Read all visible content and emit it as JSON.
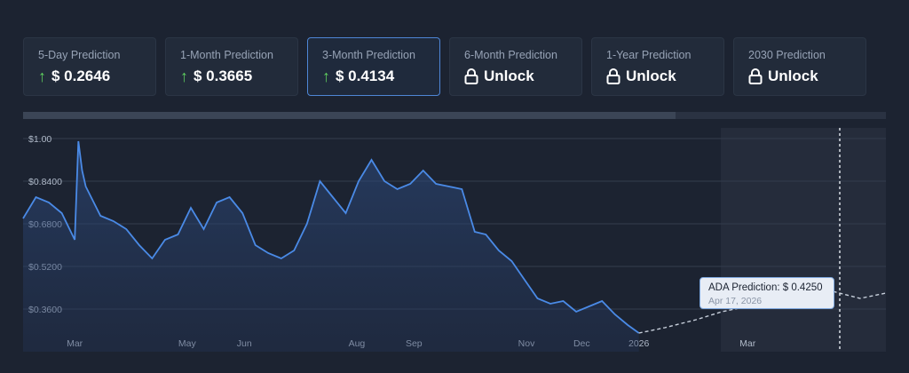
{
  "cards": [
    {
      "label": "5-Day Prediction",
      "value": "$ 0.2646",
      "locked": false,
      "active": false
    },
    {
      "label": "1-Month Prediction",
      "value": "$ 0.3665",
      "locked": false,
      "active": false
    },
    {
      "label": "3-Month Prediction",
      "value": "$ 0.4134",
      "locked": false,
      "active": true
    },
    {
      "label": "6-Month Prediction",
      "value": "Unlock",
      "locked": true,
      "active": false
    },
    {
      "label": "1-Year Prediction",
      "value": "Unlock",
      "locked": true,
      "active": false
    },
    {
      "label": "2030 Prediction",
      "value": "Unlock",
      "locked": true,
      "active": false
    }
  ],
  "tooltip": {
    "label": "ADA Prediction:",
    "value": "$ 0.4250",
    "date": "Apr 17, 2026"
  },
  "colors": {
    "historical_line": "#4a8ae6",
    "prediction_line": "#c7cfdb",
    "up_arrow": "#5fd05f",
    "active_border": "#4e86d6"
  },
  "chart_data": {
    "type": "area",
    "ylim": [
      0.2,
      1.0
    ],
    "yticks": [
      "$1.00",
      "$0.8400",
      "$0.6800",
      "$0.5200",
      "$0.3600"
    ],
    "xticks": [
      "Mar",
      "May",
      "Jun",
      "Aug",
      "Sep",
      "Nov",
      "Dec",
      "2026",
      "Mar"
    ],
    "grid": true,
    "series": [
      {
        "kind": "historical",
        "x": [
          "2025-02-01",
          "2025-02-08",
          "2025-02-15",
          "2025-02-22",
          "2025-03-01",
          "2025-03-03",
          "2025-03-05",
          "2025-03-07",
          "2025-03-15",
          "2025-03-22",
          "2025-03-29",
          "2025-04-05",
          "2025-04-12",
          "2025-04-19",
          "2025-04-26",
          "2025-05-03",
          "2025-05-10",
          "2025-05-17",
          "2025-05-24",
          "2025-05-31",
          "2025-06-07",
          "2025-06-14",
          "2025-06-21",
          "2025-06-28",
          "2025-07-05",
          "2025-07-12",
          "2025-07-19",
          "2025-07-26",
          "2025-08-02",
          "2025-08-09",
          "2025-08-16",
          "2025-08-23",
          "2025-08-30",
          "2025-09-06",
          "2025-09-13",
          "2025-09-20",
          "2025-09-27",
          "2025-10-04",
          "2025-10-10",
          "2025-10-17",
          "2025-10-24",
          "2025-10-31",
          "2025-11-07",
          "2025-11-14",
          "2025-11-21",
          "2025-11-28",
          "2025-12-05",
          "2025-12-12",
          "2025-12-19",
          "2025-12-26",
          "2026-01-01"
        ],
        "y": [
          0.7,
          0.78,
          0.76,
          0.72,
          0.62,
          0.99,
          0.88,
          0.82,
          0.71,
          0.69,
          0.66,
          0.6,
          0.55,
          0.62,
          0.64,
          0.74,
          0.66,
          0.76,
          0.78,
          0.72,
          0.6,
          0.57,
          0.55,
          0.58,
          0.68,
          0.84,
          0.78,
          0.72,
          0.84,
          0.92,
          0.84,
          0.81,
          0.83,
          0.88,
          0.83,
          0.82,
          0.81,
          0.65,
          0.64,
          0.58,
          0.54,
          0.47,
          0.4,
          0.38,
          0.39,
          0.35,
          0.37,
          0.39,
          0.34,
          0.3,
          0.27
        ]
      },
      {
        "kind": "prediction",
        "x": [
          "2026-01-01",
          "2026-01-15",
          "2026-02-01",
          "2026-02-15",
          "2026-03-01",
          "2026-03-15",
          "2026-04-01",
          "2026-04-17",
          "2026-05-01",
          "2026-05-15"
        ],
        "y": [
          0.27,
          0.29,
          0.32,
          0.35,
          0.37,
          0.39,
          0.41,
          0.425,
          0.4,
          0.42
        ]
      }
    ]
  }
}
